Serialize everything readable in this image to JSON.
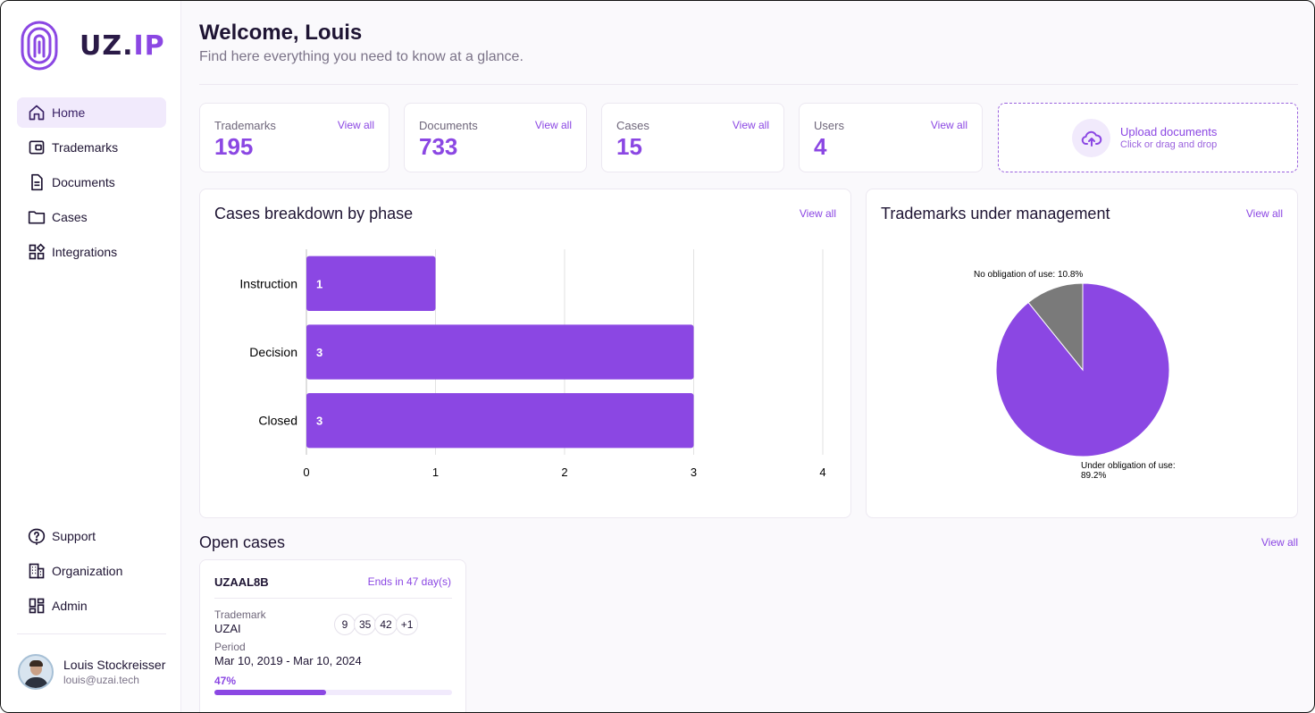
{
  "brand": {
    "name_main": "UZ.",
    "name_accent": "IP"
  },
  "nav": {
    "items": [
      {
        "label": "Home",
        "icon": "home-icon",
        "active": true
      },
      {
        "label": "Trademarks",
        "icon": "trademark-icon"
      },
      {
        "label": "Documents",
        "icon": "document-icon"
      },
      {
        "label": "Cases",
        "icon": "folder-icon"
      },
      {
        "label": "Integrations",
        "icon": "integrations-icon"
      }
    ],
    "bottom_items": [
      {
        "label": "Support",
        "icon": "help-icon"
      },
      {
        "label": "Organization",
        "icon": "building-icon"
      },
      {
        "label": "Admin",
        "icon": "admin-icon"
      }
    ]
  },
  "user": {
    "name": "Louis Stockreisser",
    "email": "louis@uzai.tech"
  },
  "header": {
    "title": "Welcome, Louis",
    "subtitle": "Find here everything you need to know at a glance."
  },
  "stats": [
    {
      "label": "Trademarks",
      "value": "195",
      "link": "View all"
    },
    {
      "label": "Documents",
      "value": "733",
      "link": "View all"
    },
    {
      "label": "Cases",
      "value": "15",
      "link": "View all"
    },
    {
      "label": "Users",
      "value": "4",
      "link": "View all"
    }
  ],
  "upload": {
    "title": "Upload documents",
    "subtitle": "Click or drag and drop",
    "icon": "cloud-upload-icon"
  },
  "cases_chart": {
    "title": "Cases breakdown by phase",
    "link": "View all"
  },
  "trademarks_chart": {
    "title": "Trademarks under management",
    "link": "View all"
  },
  "chart_data": [
    {
      "type": "bar",
      "orientation": "horizontal",
      "title": "Cases breakdown by phase",
      "categories": [
        "Instruction",
        "Decision",
        "Closed"
      ],
      "values": [
        1,
        3,
        3
      ],
      "data_labels": [
        "1",
        "3",
        "3"
      ],
      "xlim": [
        0,
        4
      ],
      "x_ticks": [
        "0",
        "1",
        "2",
        "3",
        "4"
      ],
      "grid": "vertical",
      "color": "#8b47e3"
    },
    {
      "type": "pie",
      "title": "Trademarks under management",
      "slices": [
        {
          "label": "Under obligation of use:",
          "value_label": "89.2%",
          "value": 89.2,
          "color": "#8b47e3"
        },
        {
          "label": "No obligation of use:",
          "value_label": "10.8%",
          "value": 10.8,
          "color": "#7a7a7a"
        }
      ]
    }
  ],
  "open_cases": {
    "title": "Open cases",
    "link": "View all",
    "items": [
      {
        "id": "UZAAL8B",
        "ends": "Ends in 47 day(s)",
        "trademark_label": "Trademark",
        "trademark_value": "UZAI",
        "classes": [
          "9",
          "35",
          "42",
          "+1"
        ],
        "period_label": "Period",
        "period_value": "Mar 10, 2019 - Mar 10, 2024",
        "progress_label": "47%",
        "progress": 0.47
      }
    ]
  }
}
